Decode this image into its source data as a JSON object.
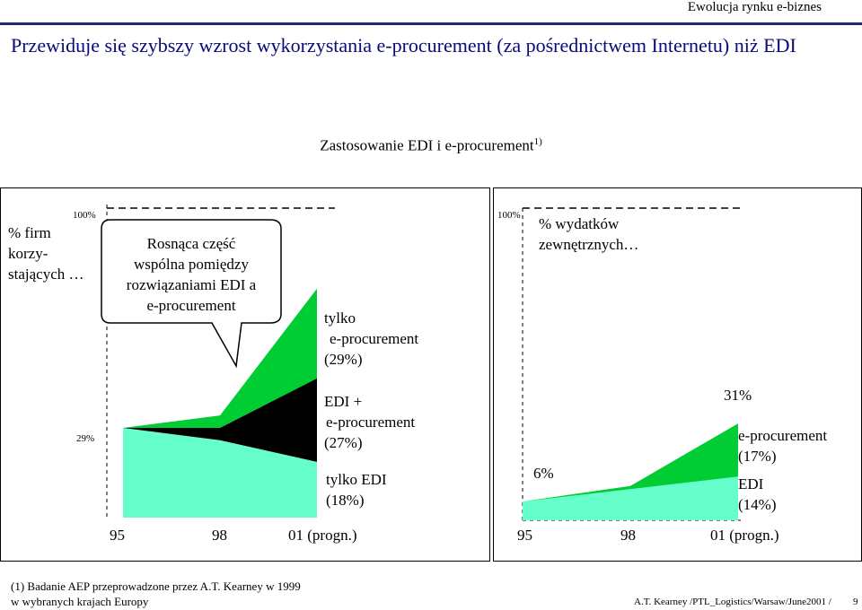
{
  "header": {
    "brand": "Ewolucja rynku e-biznes"
  },
  "slide": {
    "title": "Przewiduje się szybszy wzrost wykorzystania e-procurement (za pośrednictwem Internetu) niż EDI",
    "chart_title": "Zastosowanie EDI i e-procurement",
    "chart_title_sup": "1)"
  },
  "left_chart": {
    "y_label_line1": "% firm",
    "y_label_line2": "korzy-",
    "y_label_line3": "stających …",
    "top_tick": "100%",
    "bottom_value": "29%",
    "callout": [
      "Rosnąca część",
      "wspólna pomiędzy",
      "rozwiązaniami EDI a",
      "e-procurement"
    ],
    "label_only_eproc": [
      "tylko",
      "e-procurement",
      "(29%)"
    ],
    "label_edi_eproc": [
      "EDI +",
      "e-procurement",
      "(27%)"
    ],
    "label_only_edi": [
      "tylko EDI",
      "(18%)"
    ],
    "x_ticks": [
      "95",
      "98",
      "01 (progn.)"
    ]
  },
  "right_chart": {
    "y_label_line1": "% wydatków",
    "y_label_line2": "zewnętrznych…",
    "top_tick": "100%",
    "start_value": "6%",
    "end_value": "31%",
    "label_eproc": [
      "e-procurement",
      "(17%)"
    ],
    "label_edi": [
      "EDI",
      "(14%)"
    ],
    "x_ticks": [
      "95",
      "98",
      "01 (progn.)"
    ]
  },
  "colors": {
    "only_edi": "#66ffcc",
    "edi_eproc": "#000000",
    "only_eproc": "#00cc33",
    "title": "#0a0a78",
    "header_rule": "#1e2a78"
  },
  "chart_data": [
    {
      "type": "area",
      "x": [
        "95",
        "98",
        "01 (progn.)"
      ],
      "ylim": [
        0,
        100
      ],
      "series": [
        {
          "name": "tylko EDI",
          "values": [
            29,
            25,
            18
          ]
        },
        {
          "name": "EDI + e-procurement",
          "values": [
            0,
            4,
            27
          ]
        },
        {
          "name": "tylko e-procurement",
          "values": [
            0,
            4,
            29
          ]
        }
      ],
      "annotations": [
        "29%",
        "100%"
      ]
    },
    {
      "type": "area",
      "x": [
        "95",
        "98",
        "01 (progn.)"
      ],
      "ylim": [
        0,
        100
      ],
      "series": [
        {
          "name": "EDI",
          "values": [
            6,
            10,
            14
          ]
        },
        {
          "name": "e-procurement",
          "values": [
            0,
            1,
            17
          ]
        }
      ],
      "annotations": [
        "6%",
        "31%",
        "100%"
      ]
    }
  ],
  "footnote": {
    "line1": "(1) Badanie AEP przeprowadzone przez A.T. Kearney  w 1999",
    "line2": "w wybranych krajach Europy"
  },
  "footer": {
    "source": "A.T. Kearney /PTL_Logistics/Warsaw/June2001 /",
    "page": "9"
  }
}
